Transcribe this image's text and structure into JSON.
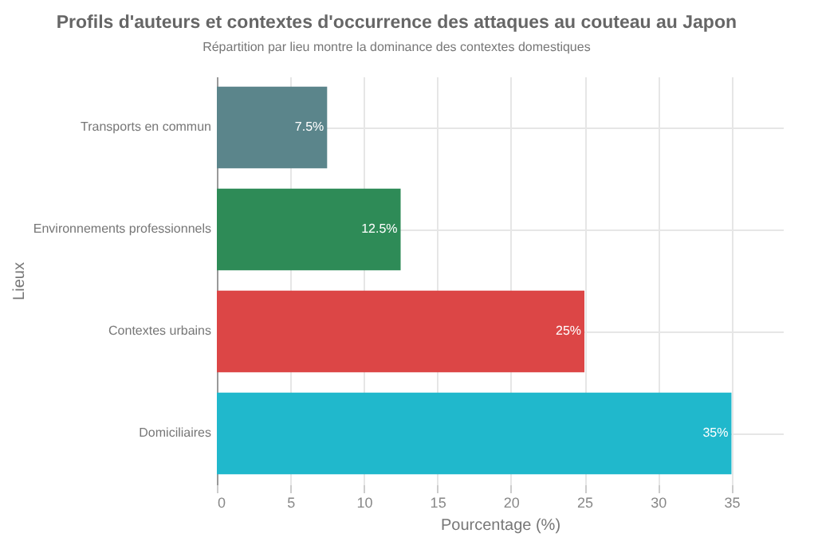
{
  "chart_data": {
    "type": "bar",
    "orientation": "horizontal",
    "title": "Profils d'auteurs et contextes d'occurrence des attaques au couteau au Japon",
    "subtitle": "Répartition par lieu montre la dominance des contextes domestiques",
    "xlabel": "Pourcentage (%)",
    "ylabel": "Lieux",
    "categories": [
      "Transports en commun",
      "Environnements professionnels",
      "Contextes urbains",
      "Domiciliaires"
    ],
    "values": [
      7.5,
      12.5,
      25,
      35
    ],
    "colors": [
      "#5b858b",
      "#2e8b57",
      "#dc4646",
      "#20b8cc"
    ],
    "value_labels": [
      "7.5%",
      "12.5%",
      "25%",
      "35%"
    ],
    "xlim": [
      0,
      38.5
    ],
    "xticks": [
      0,
      5,
      10,
      15,
      20,
      25,
      30,
      35
    ],
    "grid": true
  }
}
